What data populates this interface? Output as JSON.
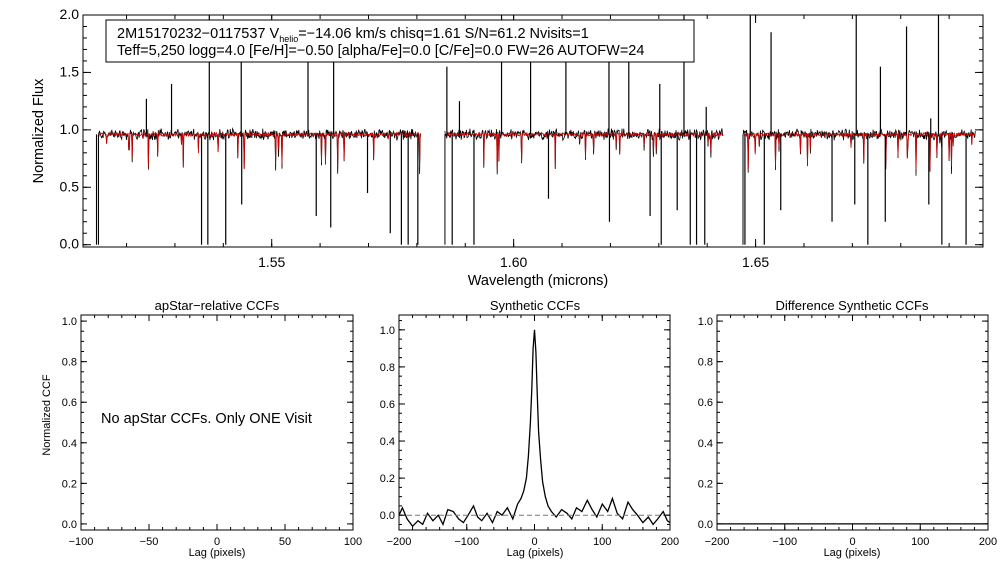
{
  "chart_data": [
    {
      "type": "line",
      "id": "spectrum",
      "title": "",
      "xlabel": "Wavelength (microns)",
      "ylabel": "Normalized Flux",
      "xlim": [
        1.511,
        1.697
      ],
      "ylim": [
        -0.02,
        2.0
      ],
      "xticks": [
        1.55,
        1.6,
        1.65
      ],
      "xtick_labels": [
        "1.55",
        "1.60",
        "1.65"
      ],
      "yticks": [
        0.0,
        0.5,
        1.0,
        1.5,
        2.0
      ],
      "ytick_labels": [
        "0.0",
        "0.5",
        "1.0",
        "1.5",
        "2.0"
      ],
      "detectors": [
        [
          1.5142,
          1.5808
        ],
        [
          1.5858,
          1.6433
        ],
        [
          1.6474,
          1.6955
        ]
      ],
      "continuum": 0.96,
      "emission_spikes": [
        {
          "x": 1.5241,
          "y": 1.27
        },
        {
          "x": 1.5293,
          "y": 1.4
        },
        {
          "x": 1.5371,
          "y": 2.0
        },
        {
          "x": 1.5437,
          "y": 1.7
        },
        {
          "x": 1.5575,
          "y": 1.75
        },
        {
          "x": 1.5628,
          "y": 1.6
        },
        {
          "x": 1.5862,
          "y": 1.55
        },
        {
          "x": 1.5888,
          "y": 1.25
        },
        {
          "x": 1.5975,
          "y": 2.0
        },
        {
          "x": 1.6035,
          "y": 1.7
        },
        {
          "x": 1.6108,
          "y": 1.85
        },
        {
          "x": 1.6197,
          "y": 1.85
        },
        {
          "x": 1.6238,
          "y": 1.6
        },
        {
          "x": 1.6302,
          "y": 1.4
        },
        {
          "x": 1.6352,
          "y": 2.0
        },
        {
          "x": 1.6398,
          "y": 1.2
        },
        {
          "x": 1.6489,
          "y": 2.0
        },
        {
          "x": 1.6532,
          "y": 1.85
        },
        {
          "x": 1.6708,
          "y": 2.0
        },
        {
          "x": 1.6758,
          "y": 1.55
        },
        {
          "x": 1.6812,
          "y": 1.9
        },
        {
          "x": 1.6862,
          "y": 1.1
        },
        {
          "x": 1.6878,
          "y": 2.0
        }
      ],
      "absorption_drops": [
        {
          "x": 1.5138,
          "y": 0.0
        },
        {
          "x": 1.5355,
          "y": 0.0
        },
        {
          "x": 1.5368,
          "y": 0.0
        },
        {
          "x": 1.5405,
          "y": 0.0
        },
        {
          "x": 1.5438,
          "y": 0.35
        },
        {
          "x": 1.5592,
          "y": 0.25
        },
        {
          "x": 1.5622,
          "y": 0.15
        },
        {
          "x": 1.5698,
          "y": 0.45
        },
        {
          "x": 1.5745,
          "y": 0.1
        },
        {
          "x": 1.5768,
          "y": 0.0
        },
        {
          "x": 1.5782,
          "y": 0.0
        },
        {
          "x": 1.5802,
          "y": 0.0
        },
        {
          "x": 1.5873,
          "y": 0.0
        },
        {
          "x": 1.5918,
          "y": 0.0
        },
        {
          "x": 1.6072,
          "y": 0.4
        },
        {
          "x": 1.6198,
          "y": 0.2
        },
        {
          "x": 1.6282,
          "y": 0.25
        },
        {
          "x": 1.6305,
          "y": 0.0
        },
        {
          "x": 1.6338,
          "y": 0.3
        },
        {
          "x": 1.6365,
          "y": 0.0
        },
        {
          "x": 1.6378,
          "y": 0.0
        },
        {
          "x": 1.6395,
          "y": 0.0
        },
        {
          "x": 1.6478,
          "y": 0.0
        },
        {
          "x": 1.6518,
          "y": 0.0
        },
        {
          "x": 1.6552,
          "y": 0.3
        },
        {
          "x": 1.6658,
          "y": 0.2
        },
        {
          "x": 1.6705,
          "y": 0.35
        },
        {
          "x": 1.6732,
          "y": 0.0
        },
        {
          "x": 1.6768,
          "y": 0.2
        },
        {
          "x": 1.6858,
          "y": 0.35
        },
        {
          "x": 1.6885,
          "y": 0.0
        },
        {
          "x": 1.6935,
          "y": 0.0
        }
      ],
      "series": [
        {
          "name": "apStar spectrum",
          "color": "#000000"
        },
        {
          "name": "best-fit synthetic",
          "color": "#cc0000"
        }
      ],
      "info_box": {
        "line1_prefix": "2M15170232−0117537  V",
        "line1_sub": "helio",
        "line1_rest": "=−14.06 km/s  chisq=1.61  S/N=61.2  Nvisits=1",
        "line2": "Teff=5,250 logg=4.0 [Fe/H]=−0.50 [alpha/Fe]=0.0 [C/Fe]=0.0 FW=26 AUTOFW=24"
      }
    },
    {
      "type": "line",
      "id": "apstar_ccf",
      "title": "apStar−relative CCFs",
      "xlabel": "Lag (pixels)",
      "ylabel": "Normalized CCF",
      "xlim": [
        -100,
        100
      ],
      "ylim": [
        -0.03,
        1.03
      ],
      "xticks": [
        -100,
        -50,
        0,
        50,
        100
      ],
      "xtick_labels": [
        "−100",
        "−50",
        "0",
        "50",
        "100"
      ],
      "yticks": [
        0.0,
        0.2,
        0.4,
        0.6,
        0.8,
        1.0
      ],
      "ytick_labels": [
        "0.0",
        "0.2",
        "0.4",
        "0.6",
        "0.8",
        "1.0"
      ],
      "annotation": "No apStar CCFs.  Only ONE Visit",
      "series": []
    },
    {
      "type": "line",
      "id": "synthetic_ccf",
      "title": "Synthetic CCFs",
      "xlabel": "Lag (pixels)",
      "ylabel": "",
      "xlim": [
        -200,
        200
      ],
      "ylim": [
        -0.08,
        1.08
      ],
      "xticks": [
        -200,
        -100,
        0,
        100,
        200
      ],
      "xtick_labels": [
        "−200",
        "−100",
        "0",
        "100",
        "200"
      ],
      "yticks": [
        0.0,
        0.2,
        0.4,
        0.6,
        0.8,
        1.0
      ],
      "ytick_labels": [
        "0.0",
        "0.2",
        "0.4",
        "0.6",
        "0.8",
        "1.0"
      ],
      "series": [
        {
          "name": "ccf",
          "color": "#000000",
          "x": [
            -200,
            -195,
            -188,
            -180,
            -172,
            -165,
            -158,
            -150,
            -142,
            -135,
            -128,
            -120,
            -112,
            -105,
            -98,
            -90,
            -84,
            -78,
            -70,
            -62,
            -55,
            -48,
            -40,
            -32,
            -25,
            -20,
            -16,
            -12,
            -9,
            -6,
            -4,
            -2,
            0,
            2,
            4,
            6,
            9,
            12,
            16,
            20,
            25,
            32,
            40,
            48,
            55,
            62,
            70,
            78,
            85,
            92,
            100,
            108,
            115,
            122,
            130,
            138,
            145,
            152,
            160,
            168,
            175,
            182,
            190,
            196,
            200
          ],
          "y": [
            0.0,
            0.04,
            -0.02,
            -0.06,
            -0.03,
            -0.05,
            0.01,
            -0.03,
            0.0,
            -0.05,
            0.03,
            0.02,
            -0.02,
            -0.04,
            0.0,
            0.05,
            -0.01,
            -0.03,
            0.01,
            -0.04,
            0.02,
            0.0,
            0.04,
            -0.02,
            0.06,
            0.09,
            0.13,
            0.2,
            0.32,
            0.5,
            0.68,
            0.9,
            1.0,
            0.88,
            0.66,
            0.45,
            0.3,
            0.18,
            0.1,
            0.05,
            0.02,
            -0.01,
            0.03,
            0.01,
            -0.02,
            0.04,
            0.02,
            0.08,
            0.03,
            -0.01,
            0.06,
            0.02,
            0.09,
            0.01,
            -0.02,
            0.07,
            0.03,
            0.0,
            -0.04,
            -0.01,
            -0.05,
            -0.02,
            0.02,
            -0.03,
            -0.04
          ]
        },
        {
          "name": "zero level",
          "color": "#777777",
          "dashed": true,
          "x": [
            -200,
            200
          ],
          "y": [
            0.0,
            0.0
          ]
        }
      ]
    },
    {
      "type": "line",
      "id": "diff_ccf",
      "title": "Difference Synthetic CCFs",
      "xlabel": "Lag (pixels)",
      "ylabel": "",
      "xlim": [
        -200,
        200
      ],
      "ylim": [
        -0.03,
        1.03
      ],
      "xticks": [
        -200,
        -100,
        0,
        100,
        200
      ],
      "xtick_labels": [
        "−200",
        "−100",
        "0",
        "100",
        "200"
      ],
      "yticks": [
        0.0,
        0.2,
        0.4,
        0.6,
        0.8,
        1.0
      ],
      "ytick_labels": [
        "0.0",
        "0.2",
        "0.4",
        "0.6",
        "0.8",
        "1.0"
      ],
      "series": [
        {
          "name": "zero level",
          "color": "#000000",
          "x": [
            -200,
            200
          ],
          "y": [
            0.0,
            0.0
          ]
        }
      ]
    }
  ]
}
